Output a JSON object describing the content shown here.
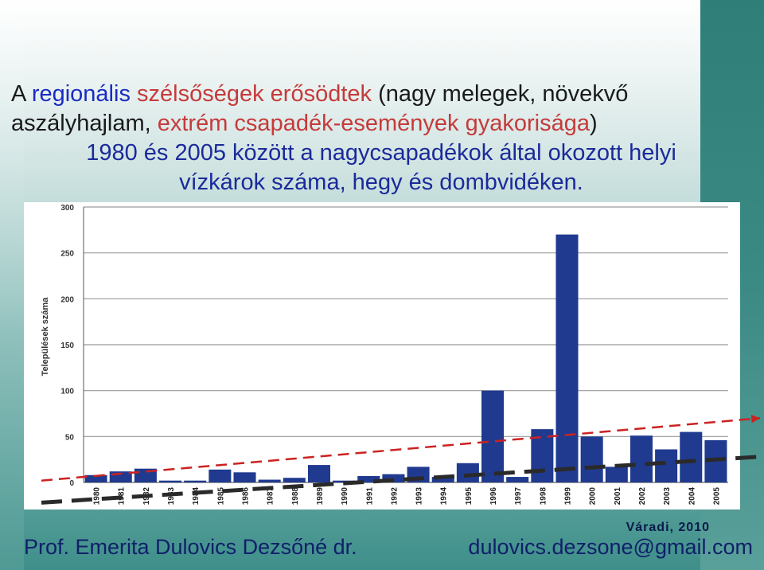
{
  "title": {
    "line1_a": "A ",
    "line1_b": "regionális",
    "line1_c": " szélsőségek erősödtek",
    "line1_d": " (nagy melegek, növekvő",
    "line2_a": "aszályhajlam, ",
    "line2_b": "extrém csapadék-események gyakorisága",
    "line2_c": ")",
    "line3": "1980 és 2005 között a nagycsapadékok által okozott helyi",
    "line4": "vízkárok száma, hegy és dombvidéken."
  },
  "chart_data": {
    "type": "bar",
    "ylabel": "Települések száma",
    "ylim": [
      0,
      300
    ],
    "yticks": [
      "0",
      "50",
      "100",
      "150",
      "200",
      "250",
      "300"
    ],
    "grid": true,
    "categories": [
      "1980",
      "1981",
      "1982",
      "1983",
      "1984",
      "1985",
      "1986",
      "1987",
      "1988",
      "1989",
      "1990",
      "1991",
      "1992",
      "1993",
      "1994",
      "1995",
      "1996",
      "1997",
      "1998",
      "1999",
      "2000",
      "2001",
      "2002",
      "2003",
      "2004",
      "2005"
    ],
    "values": [
      8,
      12,
      15,
      2,
      2,
      14,
      11,
      3,
      5,
      19,
      2,
      7,
      9,
      17,
      6,
      21,
      100,
      6,
      58,
      270,
      50,
      17,
      51,
      36,
      55,
      46
    ],
    "bar_color": "#1f3a8f",
    "trendlines": [
      {
        "style": "dashed-black",
        "start_value": -22,
        "end_value": 28
      },
      {
        "style": "dashed-red",
        "start_value": 2,
        "end_value": 70
      }
    ]
  },
  "footer": {
    "author_tag": "Váradi, 2010",
    "name": "Prof. Emerita Dulovics Dezsőné dr.",
    "email": "dulovics.dezsone@gmail.com"
  }
}
